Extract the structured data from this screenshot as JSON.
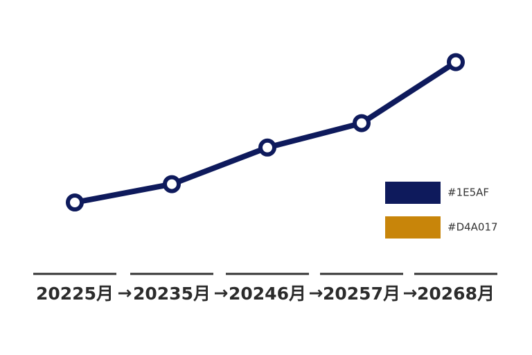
{
  "chart_data": {
    "type": "line",
    "categories": [
      "20225月",
      "20235月",
      "20246月",
      "20257月",
      "20268月"
    ],
    "separator": "→",
    "series": [
      {
        "name": "#1E5AF",
        "color": "#0e1a5c",
        "values": [
          20,
          26,
          38,
          46,
          66
        ]
      },
      {
        "name": "#D4A017",
        "color": "#c8850a",
        "values": [
          null,
          null,
          null,
          null,
          null
        ]
      }
    ],
    "ylim": [
      0,
      100
    ]
  }
}
